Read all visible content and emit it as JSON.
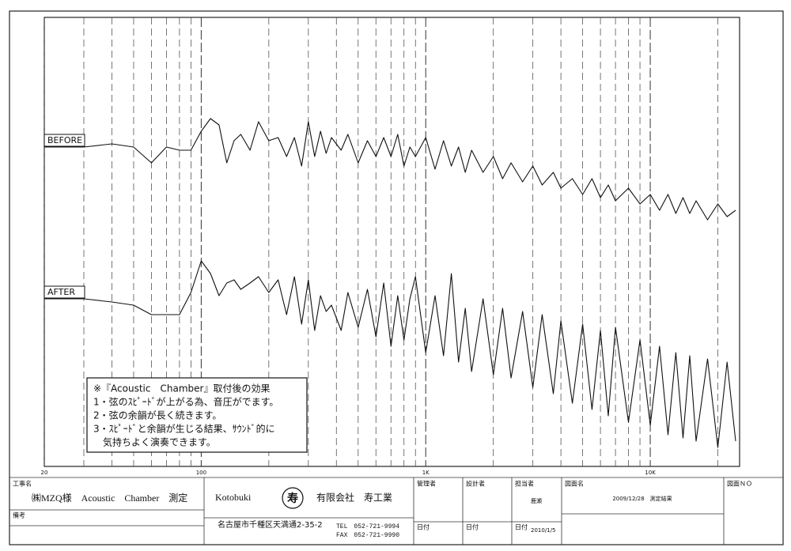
{
  "chart_data": {
    "type": "line",
    "xscale": "log",
    "xlim": [
      20,
      25000
    ],
    "ylim": [
      0,
      142
    ],
    "xticks": [
      20,
      100,
      {
        "value": 1000,
        "label": "1K"
      },
      {
        "value": 10000,
        "label": "10K"
      }
    ],
    "xgrid": [
      30,
      40,
      50,
      60,
      70,
      80,
      90,
      200,
      300,
      400,
      500,
      600,
      700,
      800,
      900,
      2000,
      3000,
      4000,
      5000,
      6000,
      7000,
      8000,
      9000,
      20000
    ],
    "color": "#111111",
    "x": [
      20,
      30,
      40,
      50,
      60,
      70,
      80,
      90,
      100,
      110,
      120,
      130,
      140,
      150,
      165,
      180,
      200,
      220,
      240,
      260,
      280,
      300,
      320,
      340,
      360,
      380,
      420,
      450,
      500,
      550,
      600,
      650,
      700,
      750,
      800,
      850,
      900,
      1000,
      1100,
      1200,
      1300,
      1400,
      1500,
      1600,
      1800,
      2000,
      2200,
      2400,
      2700,
      3000,
      3300,
      3700,
      4000,
      4500,
      5000,
      5500,
      6000,
      6500,
      7000,
      8000,
      9000,
      10000,
      11000,
      12000,
      13000,
      14000,
      15000,
      16000,
      18000,
      20000,
      22000,
      24000
    ],
    "series": [
      {
        "name": "BEFORE",
        "values": [
          101,
          101,
          102,
          101,
          96,
          101,
          100,
          100,
          106,
          110,
          108,
          96,
          103,
          105,
          100,
          109,
          103,
          104,
          98,
          104,
          95,
          109,
          98,
          106,
          99,
          104,
          100,
          105,
          96,
          103,
          98,
          104,
          98,
          105,
          95,
          101,
          98,
          104,
          94,
          103,
          95,
          101,
          93,
          100,
          93,
          98,
          91,
          96,
          90,
          95,
          89,
          93,
          88,
          91,
          86,
          91,
          85,
          89,
          84,
          88,
          83,
          86,
          81,
          86,
          80,
          85,
          80,
          84,
          78,
          83,
          79,
          81
        ]
      },
      {
        "name": "AFTER",
        "values": [
          53,
          53,
          52,
          51,
          48,
          48,
          48,
          55,
          65,
          61,
          54,
          58,
          59,
          56,
          58,
          60,
          55,
          59,
          48,
          60,
          45,
          59,
          43,
          54,
          49,
          51,
          43,
          55,
          44,
          56,
          41,
          58,
          38,
          54,
          40,
          53,
          60,
          36,
          54,
          35,
          61,
          33,
          50,
          30,
          53,
          29,
          50,
          28,
          49,
          25,
          48,
          23,
          46,
          20,
          45,
          18,
          43,
          16,
          44,
          14,
          40,
          13,
          38,
          10,
          36,
          9,
          35,
          8,
          34,
          6,
          33,
          8
        ]
      }
    ]
  },
  "note": {
    "lines": [
      "※『Acoustic　Chamber』取付後の効果",
      "1・弦のｽﾋﾟｰﾄﾞが上がる為、音圧がでます。",
      "2・弦の余韻が長く続きます。",
      "3・ｽﾋﾟｰﾄﾞと余韻が生じる結果、ｻｳﾝﾄﾞ的に",
      "　気持ちよく演奏できます。"
    ]
  },
  "title_block": {
    "project_label": "工事名",
    "project": "㈱MZQ様　Acoustic　Chamber　測定",
    "remarks_label": "備考",
    "company_en": "Kotobuki",
    "logo": "寿",
    "company": "有限会社　寿工業",
    "address": "名古屋市千種区天満通2-35-2",
    "tel": "TEL　052-721-9994",
    "fax": "FAX　052-721-9990",
    "manager": "管理者",
    "designer": "設計者",
    "person": "担当者",
    "person_name": "鹿瀬",
    "date_labels": [
      "日付",
      "日付",
      "日付"
    ],
    "date": "2010/1/5",
    "drawing_name_label": "図面名",
    "drawing_name": "2009/12/28　測定結果",
    "drawing_no_label": "図面ＮＯ"
  }
}
